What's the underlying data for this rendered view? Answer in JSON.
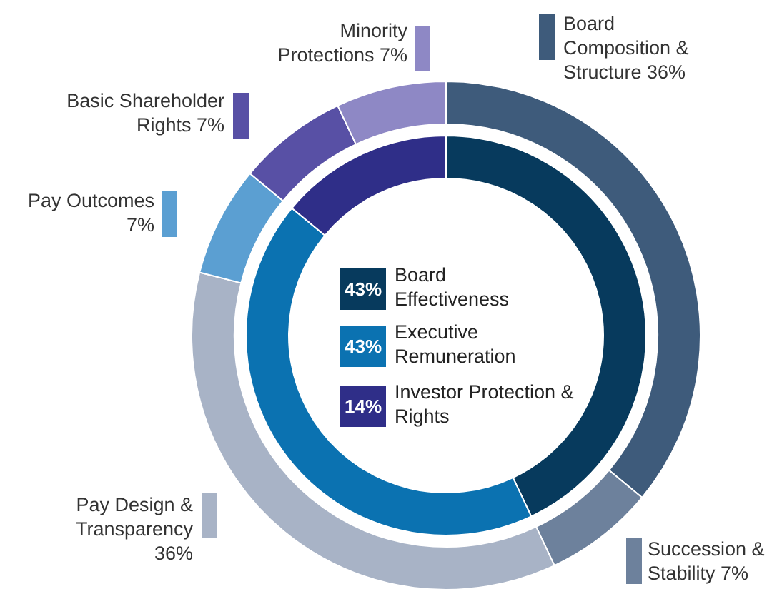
{
  "chart_data": [
    {
      "type": "donut",
      "categories": [
        "Board Composition & Structure",
        "Succession & Stability",
        "Pay Design & Transparency",
        "Pay Outcomes",
        "Basic Shareholder Rights",
        "Minority Protections"
      ],
      "values": [
        36,
        7,
        36,
        7,
        7,
        7
      ],
      "colors": [
        "#3e5b7b",
        "#6d819c",
        "#a8b3c6",
        "#5b9fd2",
        "#5850a5",
        "#8e88c5"
      ],
      "value_labels": [
        "36%",
        "7%",
        "36%",
        "7%",
        "7%",
        "7%"
      ],
      "legend": "left"
    },
    {
      "type": "donut",
      "categories": [
        "Board Effectiveness",
        "Executive Remuneration",
        "Investor Protection & Rights"
      ],
      "values": [
        43,
        43,
        14
      ],
      "colors": [
        "#073a5d",
        "#0b72b1",
        "#2f2e88"
      ],
      "value_labels": [
        "43%",
        "43%",
        "14%"
      ],
      "legend": "center"
    }
  ]
}
